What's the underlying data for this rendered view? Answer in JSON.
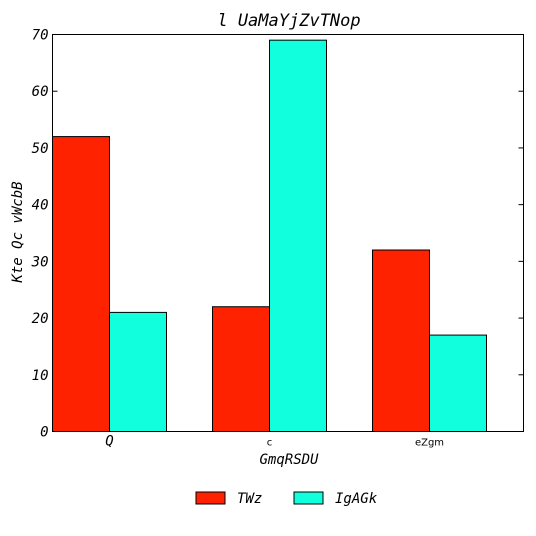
{
  "chart_data": {
    "type": "bar",
    "title": "l UaMaYjZvTNop",
    "xlabel": "GmqRSDU",
    "ylabel": "Kte Qc vWcbB",
    "categories": [
      "Q",
      "c",
      "eZgm"
    ],
    "series": [
      {
        "name": "TWz",
        "values": [
          52,
          22,
          32
        ],
        "color": "#ff2200"
      },
      {
        "name": "IgAGk",
        "values": [
          21,
          69,
          17
        ],
        "color": "#11ffdd"
      }
    ],
    "ylim": [
      0,
      70
    ],
    "yticks": [
      "0",
      "10",
      "20",
      "30",
      "40",
      "50",
      "60",
      "70"
    ],
    "grid": false,
    "legend_position": "bottom-center"
  }
}
